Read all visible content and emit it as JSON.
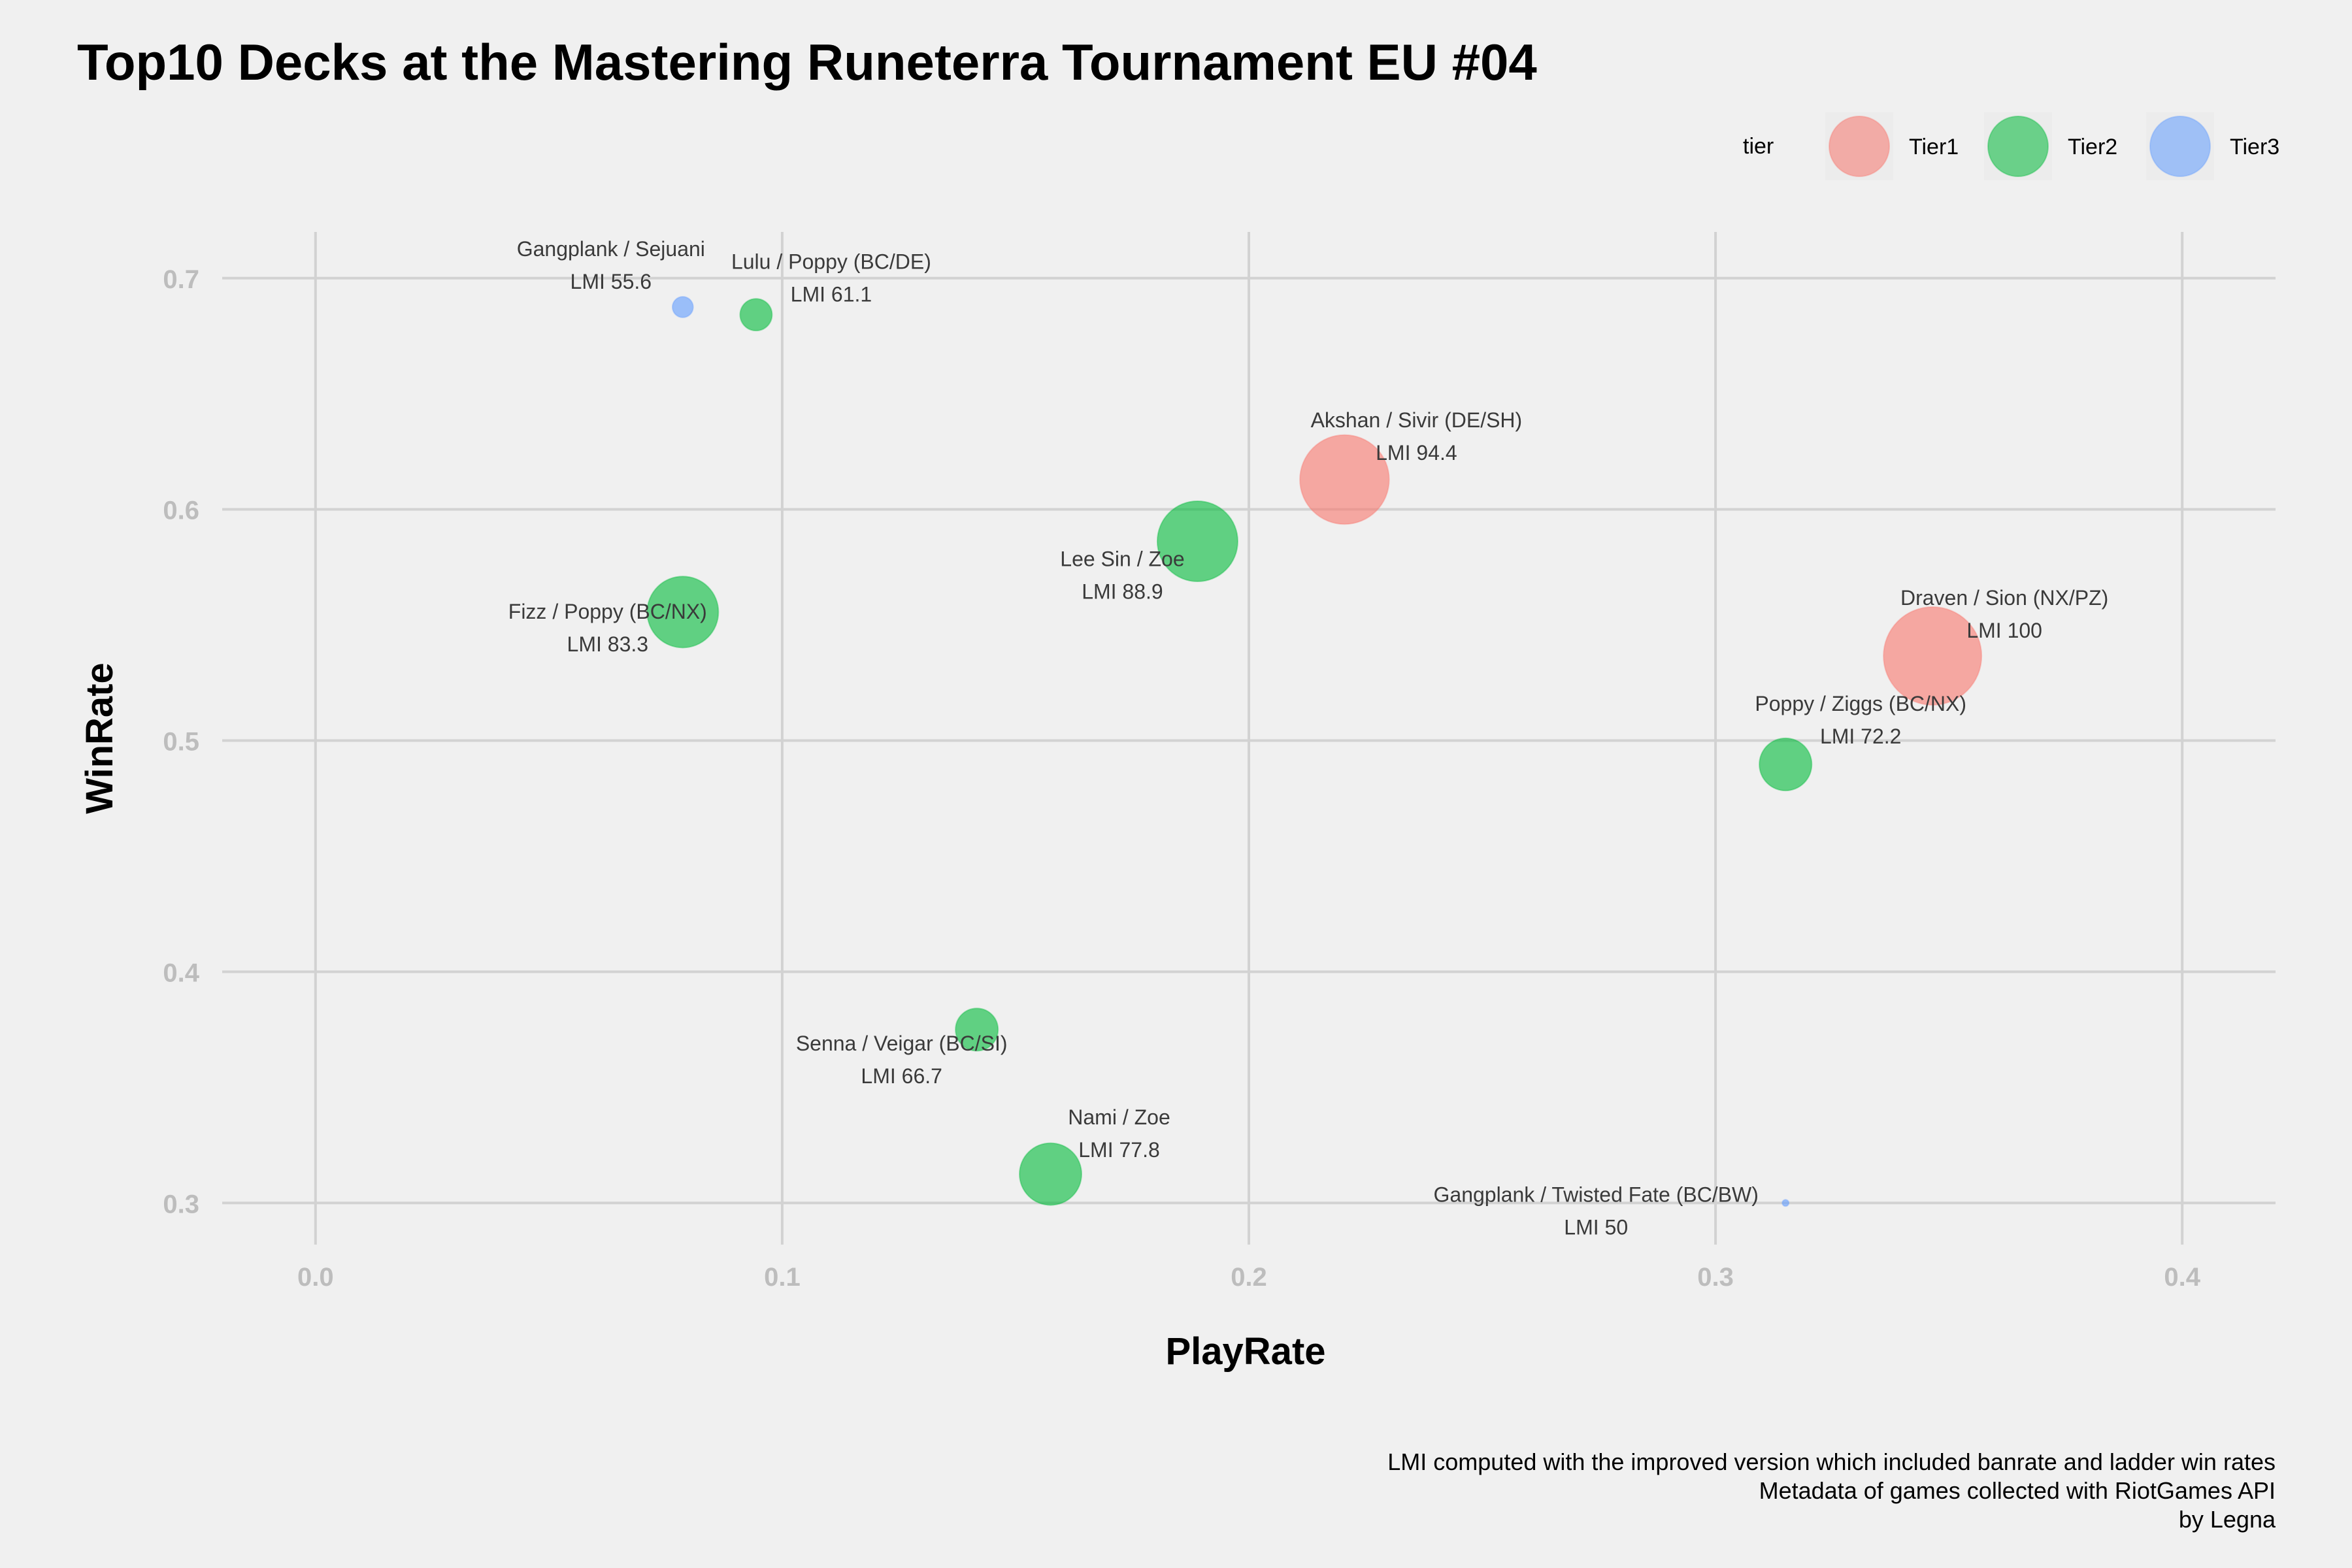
{
  "chart_data": {
    "type": "scatter",
    "title": "Top10 Decks at the Mastering Runeterra Tournament EU #04",
    "xlabel": "PlayRate",
    "ylabel": "WinRate",
    "xlim": [
      -0.02,
      0.42
    ],
    "ylim": [
      0.282,
      0.72
    ],
    "xticks": [
      "0.0",
      "0.1",
      "0.2",
      "0.3",
      "0.4"
    ],
    "xtick_values": [
      0.0,
      0.1,
      0.2,
      0.3,
      0.4
    ],
    "yticks": [
      "0.3",
      "0.4",
      "0.5",
      "0.6",
      "0.7"
    ],
    "ytick_values": [
      0.3,
      0.4,
      0.5,
      0.6,
      0.7
    ],
    "grid": true,
    "legend": {
      "title": "tier",
      "position": "top-right",
      "entries": [
        {
          "label": "Tier1",
          "color": "#F8766D"
        },
        {
          "label": "Tier2",
          "color": "#00BA38"
        },
        {
          "label": "Tier3",
          "color": "#619CFF"
        }
      ]
    },
    "points": [
      {
        "name": "Gangplank / Sejuani",
        "lmi_label": "LMI 55.6",
        "lmi": 55.6,
        "x": 0.0787,
        "y": 0.6875,
        "tier": "Tier3"
      },
      {
        "name": "Lulu / Poppy (BC/DE)",
        "lmi_label": "LMI 61.1",
        "lmi": 61.1,
        "x": 0.0944,
        "y": 0.6842,
        "tier": "Tier2"
      },
      {
        "name": "Akshan / Sivir (DE/SH)",
        "lmi_label": "LMI 94.4",
        "lmi": 94.4,
        "x": 0.2205,
        "y": 0.6129,
        "tier": "Tier1"
      },
      {
        "name": "Lee Sin / Zoe",
        "lmi_label": "LMI 88.9",
        "lmi": 88.9,
        "x": 0.189,
        "y": 0.5862,
        "tier": "Tier2"
      },
      {
        "name": "Fizz / Poppy (BC/NX)",
        "lmi_label": "LMI 83.3",
        "lmi": 83.3,
        "x": 0.0787,
        "y": 0.5556,
        "tier": "Tier2"
      },
      {
        "name": "Draven / Sion (NX/PZ)",
        "lmi_label": "LMI 100",
        "lmi": 100,
        "x": 0.3465,
        "y": 0.5366,
        "tier": "Tier1"
      },
      {
        "name": "Poppy / Ziggs (BC/NX)",
        "lmi_label": "LMI 72.2",
        "lmi": 72.2,
        "x": 0.315,
        "y": 0.4897,
        "tier": "Tier2"
      },
      {
        "name": "Senna / Veigar (BC/SI)",
        "lmi_label": "LMI 66.7",
        "lmi": 66.7,
        "x": 0.1417,
        "y": 0.375,
        "tier": "Tier2"
      },
      {
        "name": "Nami / Zoe",
        "lmi_label": "LMI 77.8",
        "lmi": 77.8,
        "x": 0.1575,
        "y": 0.3125,
        "tier": "Tier2"
      },
      {
        "name": "Gangplank / Twisted Fate (BC/BW)",
        "lmi_label": "LMI 50",
        "lmi": 50,
        "x": 0.315,
        "y": 0.3,
        "tier": "Tier3"
      }
    ],
    "caption": [
      "LMI computed with the improved version which included banrate and ladder win rates",
      "Metadata of games collected with RiotGames API",
      "by Legna"
    ]
  }
}
